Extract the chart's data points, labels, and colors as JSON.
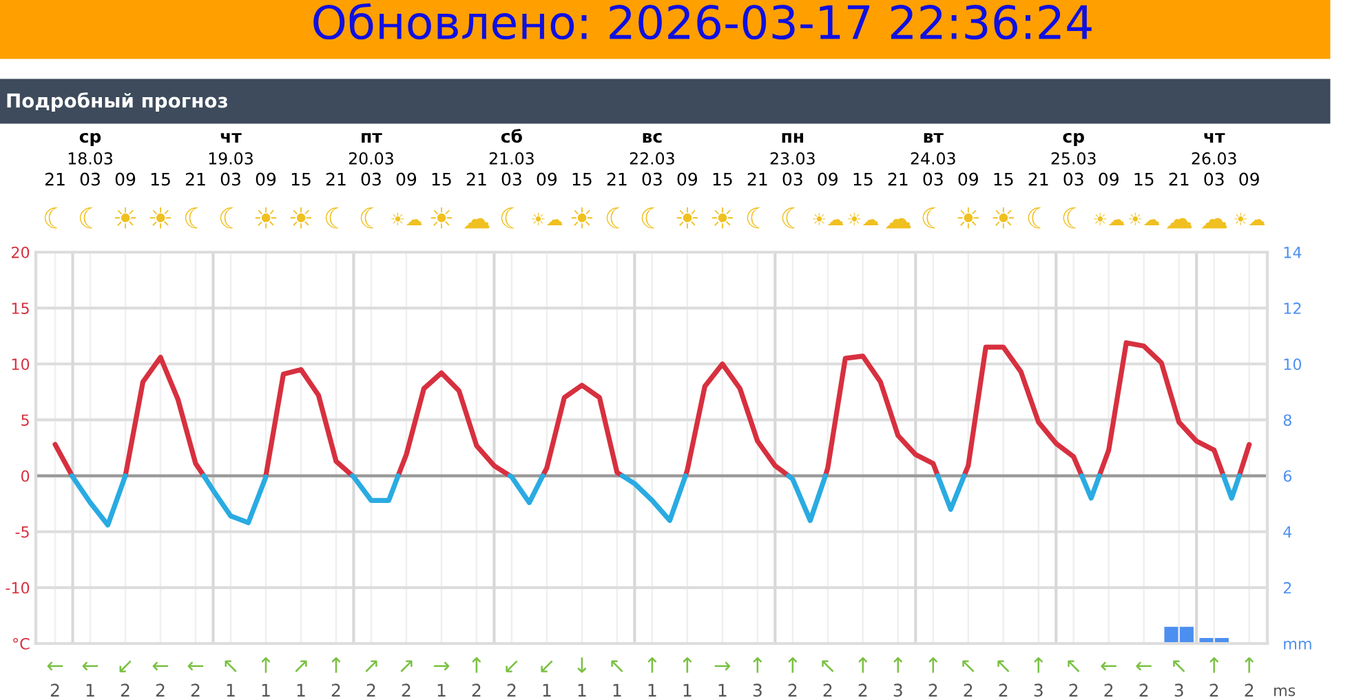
{
  "chart_data": {
    "type": "line",
    "title": "Обновлено: 2026-03-17 22:36:24",
    "subtitle": "Подробный прогноз",
    "xticks": [
      {
        "value": "2026-03-17T21:00",
        "label": "21"
      },
      {
        "value": "2026-03-18T03:00",
        "label": "03"
      },
      {
        "value": "2026-03-18T09:00",
        "label": "09"
      },
      {
        "value": "2026-03-18T15:00",
        "label": "15"
      },
      {
        "value": "2026-03-18T21:00",
        "label": "21"
      },
      {
        "value": "2026-03-19T03:00",
        "label": "03"
      },
      {
        "value": "2026-03-19T09:00",
        "label": "09"
      },
      {
        "value": "2026-03-19T15:00",
        "label": "15"
      },
      {
        "value": "2026-03-19T21:00",
        "label": "21"
      },
      {
        "value": "2026-03-20T03:00",
        "label": "03"
      },
      {
        "value": "2026-03-20T09:00",
        "label": "09"
      },
      {
        "value": "2026-03-20T15:00",
        "label": "15"
      },
      {
        "value": "2026-03-20T21:00",
        "label": "21"
      },
      {
        "value": "2026-03-21T03:00",
        "label": "03"
      },
      {
        "value": "2026-03-21T09:00",
        "label": "09"
      },
      {
        "value": "2026-03-21T15:00",
        "label": "15"
      },
      {
        "value": "2026-03-21T21:00",
        "label": "21"
      },
      {
        "value": "2026-03-22T03:00",
        "label": "03"
      },
      {
        "value": "2026-03-22T09:00",
        "label": "09"
      },
      {
        "value": "2026-03-22T15:00",
        "label": "15"
      },
      {
        "value": "2026-03-22T21:00",
        "label": "21"
      },
      {
        "value": "2026-03-23T03:00",
        "label": "03"
      },
      {
        "value": "2026-03-23T09:00",
        "label": "09"
      },
      {
        "value": "2026-03-23T15:00",
        "label": "15"
      },
      {
        "value": "2026-03-23T21:00",
        "label": "21"
      },
      {
        "value": "2026-03-24T03:00",
        "label": "03"
      },
      {
        "value": "2026-03-24T09:00",
        "label": "09"
      },
      {
        "value": "2026-03-24T15:00",
        "label": "15"
      },
      {
        "value": "2026-03-24T21:00",
        "label": "21"
      },
      {
        "value": "2026-03-25T03:00",
        "label": "03"
      },
      {
        "value": "2026-03-25T09:00",
        "label": "09"
      },
      {
        "value": "2026-03-25T15:00",
        "label": "15"
      },
      {
        "value": "2026-03-25T21:00",
        "label": "21"
      },
      {
        "value": "2026-03-26T03:00",
        "label": "03"
      },
      {
        "value": "2026-03-26T09:00",
        "label": "09"
      }
    ],
    "xlim": [
      "2026-03-17T17:42",
      "2026-03-26T12:06"
    ],
    "series": [
      {
        "color": "#d7303f",
        "x": [
          "2026-03-17T21:00",
          "2026-03-17T23:54",
          null,
          "2026-03-18T09:00",
          "2026-03-18T12:00",
          "2026-03-18T15:00",
          "2026-03-18T18:00",
          "2026-03-18T21:00",
          "2026-03-18T22:24",
          null,
          "2026-03-19T09:00",
          "2026-03-19T12:00",
          "2026-03-19T15:00",
          "2026-03-19T18:00",
          "2026-03-19T21:00",
          "2026-03-19T23:48",
          null,
          "2026-03-20T07:36",
          "2026-03-20T09:00",
          "2026-03-20T12:00",
          "2026-03-20T15:00",
          "2026-03-20T18:00",
          "2026-03-20T21:00",
          "2026-03-21T00:00",
          "2026-03-21T02:42",
          null,
          "2026-03-21T08:18",
          "2026-03-21T09:00",
          "2026-03-21T12:00",
          "2026-03-21T15:00",
          "2026-03-21T18:00",
          "2026-03-21T21:00",
          "2026-03-21T21:54",
          null,
          "2026-03-22T08:42",
          "2026-03-22T09:00",
          "2026-03-22T12:00",
          "2026-03-22T15:00",
          "2026-03-22T18:00",
          "2026-03-22T21:00",
          "2026-03-23T00:00",
          "2026-03-23T02:18",
          null,
          "2026-03-23T08:36",
          "2026-03-23T09:00",
          "2026-03-23T12:00",
          "2026-03-23T15:00",
          "2026-03-23T18:00",
          "2026-03-23T21:00",
          "2026-03-24T00:00",
          "2026-03-24T03:00",
          "2026-03-24T03:48",
          null,
          "2026-03-24T08:18",
          "2026-03-24T09:00",
          "2026-03-24T12:00",
          "2026-03-24T15:00",
          "2026-03-24T18:00",
          "2026-03-24T21:00",
          "2026-03-25T00:00",
          "2026-03-25T03:00",
          "2026-03-25T04:24",
          null,
          "2026-03-25T07:24",
          "2026-03-25T09:00",
          "2026-03-25T12:00",
          "2026-03-25T15:00",
          "2026-03-25T18:00",
          "2026-03-25T21:00",
          "2026-03-26T00:00",
          "2026-03-26T03:00",
          "2026-03-26T04:36",
          null,
          "2026-03-26T07:18",
          "2026-03-26T09:00"
        ],
        "values": [
          2.8,
          0,
          null,
          0,
          8.4,
          10.6,
          6.8,
          1.1,
          0,
          null,
          0,
          9.1,
          9.5,
          7.2,
          1.3,
          0,
          null,
          0,
          1.9,
          7.8,
          9.2,
          7.6,
          2.7,
          0.9,
          0,
          null,
          0,
          0.7,
          7.0,
          8.1,
          7.0,
          0.3,
          0,
          null,
          0,
          0.5,
          8.0,
          10.0,
          7.8,
          3.1,
          0.9,
          0,
          null,
          0,
          0.7,
          10.5,
          10.7,
          8.4,
          3.6,
          1.9,
          1.1,
          0,
          null,
          0,
          0.9,
          11.5,
          11.5,
          9.3,
          4.8,
          2.9,
          1.7,
          0,
          null,
          0,
          2.3,
          11.9,
          11.6,
          10.1,
          4.8,
          3.1,
          2.3,
          0,
          null,
          0,
          2.8
        ]
      },
      {
        "color": "#29abe2",
        "x": [
          "2026-03-17T23:54",
          "2026-03-18T00:00",
          "2026-03-18T03:00",
          "2026-03-18T06:00",
          "2026-03-18T09:00",
          null,
          "2026-03-18T22:24",
          "2026-03-19T00:00",
          "2026-03-19T03:00",
          "2026-03-19T06:00",
          "2026-03-19T09:00",
          null,
          "2026-03-19T23:48",
          "2026-03-20T00:00",
          "2026-03-20T03:00",
          "2026-03-20T06:00",
          "2026-03-20T07:36",
          null,
          "2026-03-21T02:42",
          "2026-03-21T03:00",
          "2026-03-21T06:00",
          "2026-03-21T08:18",
          null,
          "2026-03-21T21:54",
          "2026-03-22T00:00",
          "2026-03-22T03:00",
          "2026-03-22T06:00",
          "2026-03-22T08:42",
          null,
          "2026-03-23T02:18",
          "2026-03-23T03:00",
          "2026-03-23T06:00",
          "2026-03-23T08:36",
          null,
          "2026-03-24T03:48",
          "2026-03-24T06:00",
          "2026-03-24T08:18",
          null,
          "2026-03-25T04:24",
          "2026-03-25T06:00",
          "2026-03-25T07:24",
          null,
          "2026-03-26T04:36",
          "2026-03-26T06:00",
          "2026-03-26T07:18"
        ],
        "values": [
          0,
          -0.1,
          -2.4,
          -4.4,
          0,
          null,
          0,
          -1.3,
          -3.6,
          -4.2,
          -0.1,
          null,
          0,
          -0.1,
          -2.2,
          -2.2,
          0,
          null,
          0,
          -0.1,
          -2.4,
          0,
          null,
          0,
          -0.7,
          -2.2,
          -4.0,
          0,
          null,
          0,
          -0.3,
          -4.0,
          0,
          null,
          0,
          -3.0,
          0,
          null,
          0,
          -2.0,
          0,
          null,
          0,
          -2.0,
          0
        ]
      },
      {
        "type": "bar",
        "axis": "y2",
        "color": "#4d8ff0",
        "x": [
          "2026-03-25T21:00",
          "2026-03-26T03:00"
        ],
        "values": [
          0.6,
          0.2
        ]
      }
    ],
    "ylim": [
      -15,
      20
    ],
    "yticks": [
      {
        "value": -15,
        "label": "°C"
      },
      -10,
      -5,
      0,
      5,
      10,
      15,
      20
    ],
    "y2lim": [
      0,
      14
    ],
    "y2ticks": [
      {
        "value": 0,
        "label": "mm"
      },
      2,
      4,
      6,
      8,
      10,
      12,
      14
    ],
    "grid": true,
    "ref_lines": [
      {
        "axis": "y",
        "value": 0,
        "color": "#999999"
      },
      {
        "axis": "x",
        "value": "2026-03-18T00:00",
        "color": "#d8d8d8"
      },
      {
        "axis": "x",
        "value": "2026-03-19T00:00",
        "color": "#d8d8d8"
      },
      {
        "axis": "x",
        "value": "2026-03-20T00:00",
        "color": "#d8d8d8"
      },
      {
        "axis": "x",
        "value": "2026-03-21T00:00",
        "color": "#d8d8d8"
      },
      {
        "axis": "x",
        "value": "2026-03-22T00:00",
        "color": "#d8d8d8"
      },
      {
        "axis": "x",
        "value": "2026-03-23T00:00",
        "color": "#d8d8d8"
      },
      {
        "axis": "x",
        "value": "2026-03-24T00:00",
        "color": "#d8d8d8"
      },
      {
        "axis": "x",
        "value": "2026-03-25T00:00",
        "color": "#d8d8d8"
      },
      {
        "axis": "x",
        "value": "2026-03-26T00:00",
        "color": "#d8d8d8"
      }
    ],
    "annotations": [
      "ср\n18.03",
      "чт\n19.03",
      "пт\n20.03",
      "сб\n21.03",
      "вс\n22.03",
      "пн\n23.03",
      "вт\n24.03",
      "ср\n25.03",
      "чт\n26.03",
      "☾",
      "☾",
      "☀",
      "☀",
      "☾",
      "☾",
      "☀",
      "☀",
      "☾",
      "☾",
      "☀☁",
      "☀",
      "☁",
      "☾",
      "☀☁",
      "☀",
      "☾",
      "☾",
      "☀",
      "☀",
      "☾",
      "☾",
      "☀☁",
      "☀☁",
      "☁",
      "☾",
      "☀",
      "☀",
      "☾",
      "☾",
      "☀☁",
      "☀☁",
      "☁",
      "☁",
      "☀☁",
      "←",
      "←",
      "↙",
      "←",
      "←",
      "↖",
      "↑",
      "↗",
      "↑",
      "↗",
      "↗",
      "→",
      "↑",
      "↙",
      "↙",
      "↓",
      "↖",
      "↑",
      "↑",
      "→",
      "↑",
      "↑",
      "↖",
      "↑",
      "↑",
      "↑",
      "↖",
      "↖",
      "↑",
      "↖",
      "←",
      "←",
      "↖",
      "↑",
      "↑",
      "2",
      "1",
      "2",
      "2",
      "2",
      "1",
      "1",
      "1",
      "2",
      "2",
      "2",
      "1",
      "2",
      "2",
      "1",
      "1",
      "1",
      "1",
      "1",
      "1",
      "3",
      "2",
      "2",
      "2",
      "3",
      "2",
      "2",
      "2",
      "3",
      "2",
      "2",
      "2",
      "3",
      "2",
      "2",
      "ms"
    ]
  }
}
